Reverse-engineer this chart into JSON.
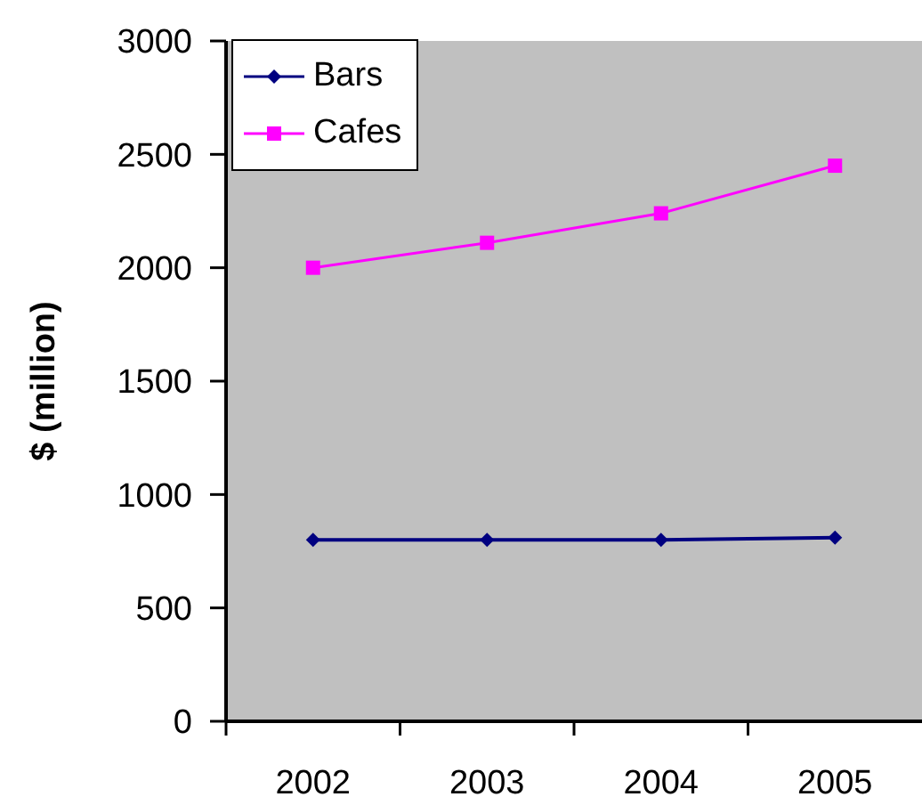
{
  "chart_data": {
    "type": "line",
    "ylabel": "$ (million)",
    "categories": [
      "2002",
      "2003",
      "2004",
      "2005"
    ],
    "series": [
      {
        "name": "Bars",
        "color": "#000080",
        "marker": "diamond",
        "values": [
          800,
          800,
          800,
          810
        ]
      },
      {
        "name": "Cafes",
        "color": "#ff00ff",
        "marker": "square",
        "values": [
          2000,
          2110,
          2240,
          2450
        ]
      }
    ],
    "ylim": [
      0,
      3000
    ],
    "yticks": [
      0,
      500,
      1000,
      1500,
      2000,
      2500,
      3000
    ],
    "legend": "top left",
    "line_style": "solid"
  }
}
